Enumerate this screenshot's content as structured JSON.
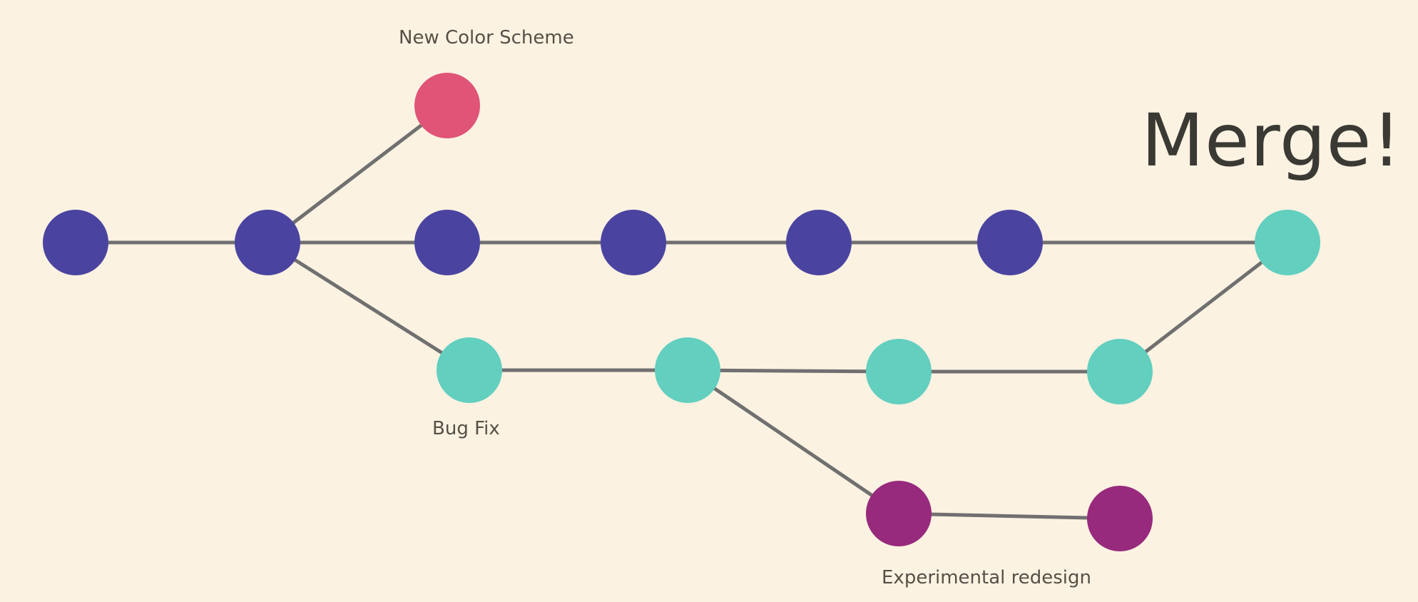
{
  "labels": {
    "new_color_scheme": "New Color Scheme",
    "bug_fix": "Bug Fix",
    "experimental_redesign": "Experimental redesign",
    "merge": "Merge!"
  },
  "colors": {
    "background": "#fcf2e2",
    "main_branch": "#4a44a0",
    "bug_fix_branch": "#62cfbf",
    "new_color_branch": "#e05477",
    "experimental_branch": "#972a7c",
    "edge": "#707070",
    "text": "#555046",
    "merge_text": "#3a3934"
  },
  "branches": [
    {
      "id": "main",
      "commits": 7,
      "color_key": "main_branch"
    },
    {
      "id": "new-color-scheme",
      "commits": 1,
      "color_key": "new_color_branch"
    },
    {
      "id": "bug-fix",
      "commits": 4,
      "color_key": "bug_fix_branch"
    },
    {
      "id": "experimental-redesign",
      "commits": 2,
      "color_key": "experimental_branch"
    }
  ]
}
